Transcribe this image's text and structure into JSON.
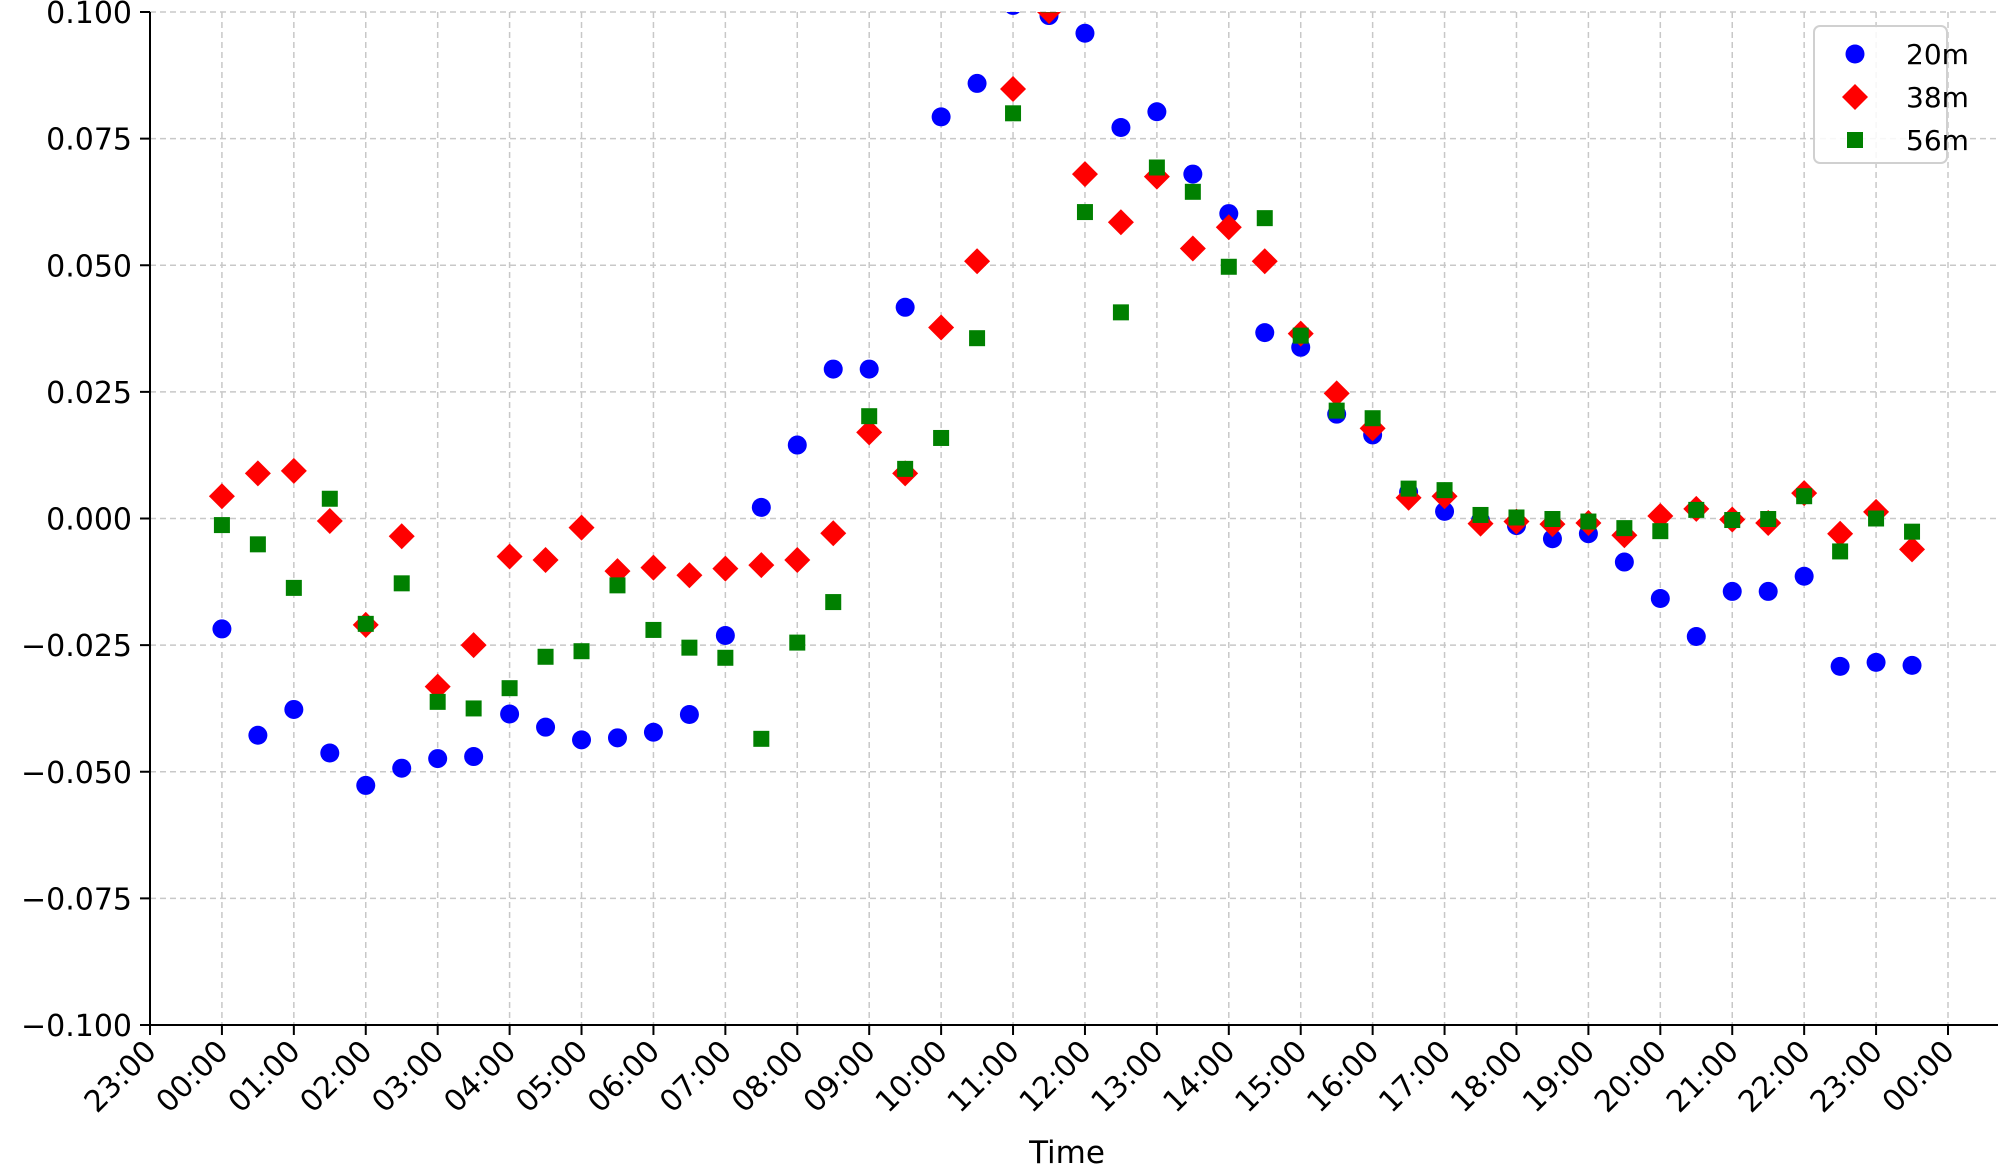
{
  "chart_data": {
    "type": "scatter",
    "title": "",
    "xlabel": "Time",
    "ylabel": "",
    "x_tick_labels": [
      "23:00",
      "00:00",
      "01:00",
      "02:00",
      "03:00",
      "04:00",
      "05:00",
      "06:00",
      "07:00",
      "08:00",
      "09:00",
      "10:00",
      "11:00",
      "12:00",
      "13:00",
      "14:00",
      "15:00",
      "16:00",
      "17:00",
      "18:00",
      "19:00",
      "20:00",
      "21:00",
      "22:00",
      "23:00",
      "00:00"
    ],
    "y_tick_labels": [
      "0.100",
      "0.075",
      "0.050",
      "0.025",
      "0.000",
      "−0.025",
      "−0.050",
      "−0.075",
      "−0.100"
    ],
    "xlim": [
      "23:00",
      "00:00 (+1 day)"
    ],
    "ylim": [
      -0.1,
      0.1
    ],
    "grid": true,
    "legend_position": "top-right",
    "x": [
      "00:00",
      "00:30",
      "01:00",
      "01:30",
      "02:00",
      "02:30",
      "03:00",
      "03:30",
      "04:00",
      "04:30",
      "05:00",
      "05:30",
      "06:00",
      "06:30",
      "07:00",
      "07:30",
      "08:00",
      "08:30",
      "09:00",
      "09:30",
      "10:00",
      "10:30",
      "11:00",
      "11:30",
      "12:00",
      "12:30",
      "13:00",
      "13:30",
      "14:00",
      "14:30",
      "15:00",
      "15:30",
      "16:00",
      "16:30",
      "17:00",
      "17:30",
      "18:00",
      "18:30",
      "19:00",
      "19:30",
      "20:00",
      "20:30",
      "21:00",
      "21:30",
      "22:00",
      "22:30",
      "23:00",
      "23:30"
    ],
    "series": [
      {
        "name": "20m",
        "marker": "circle",
        "color": "#0000ff",
        "values": [
          -0.0218,
          -0.0428,
          -0.0377,
          -0.0463,
          -0.0527,
          -0.0493,
          -0.0474,
          -0.047,
          -0.0386,
          -0.0412,
          -0.0437,
          -0.0433,
          -0.0422,
          -0.0387,
          -0.0231,
          0.0022,
          0.0145,
          0.0295,
          0.0295,
          0.0417,
          0.0793,
          0.0859,
          0.1013,
          0.0993,
          0.0958,
          0.0772,
          0.0803,
          0.068,
          0.0602,
          0.0367,
          0.0338,
          0.0206,
          0.0165,
          0.0052,
          0.0014,
          -0.0004,
          -0.0014,
          -0.004,
          -0.003,
          -0.0086,
          -0.0158,
          -0.0233,
          -0.0144,
          -0.0144,
          -0.0114,
          -0.0292,
          -0.0284,
          -0.029
        ]
      },
      {
        "name": "38m",
        "marker": "diamond",
        "color": "#ff0000",
        "values": [
          0.0044,
          0.0089,
          0.0094,
          -0.0005,
          -0.021,
          -0.0035,
          -0.0332,
          -0.025,
          -0.0075,
          -0.0082,
          -0.0018,
          -0.0104,
          -0.0097,
          -0.0112,
          -0.0099,
          -0.0092,
          -0.0082,
          -0.0029,
          0.017,
          0.0089,
          0.0377,
          0.0508,
          0.0848,
          0.1002,
          0.068,
          0.0585,
          0.0675,
          0.0533,
          0.0575,
          0.0508,
          0.0365,
          0.0247,
          0.0178,
          0.0041,
          0.0044,
          -0.001,
          -0.0006,
          -0.0011,
          -0.0009,
          -0.0033,
          0.0005,
          0.0019,
          -0.0002,
          -0.0009,
          0.005,
          -0.003,
          0.0013,
          -0.0061
        ]
      },
      {
        "name": "56m",
        "marker": "square",
        "color": "#008000",
        "values": [
          -0.0013,
          -0.0051,
          -0.0137,
          0.0039,
          -0.0208,
          -0.0128,
          -0.0362,
          -0.0375,
          -0.0335,
          -0.0273,
          -0.0262,
          -0.0132,
          -0.022,
          -0.0255,
          -0.0275,
          -0.0435,
          -0.0245,
          -0.0165,
          0.0202,
          0.0098,
          0.0159,
          0.0356,
          0.08,
          0.1015,
          0.0605,
          0.0407,
          0.0693,
          0.0645,
          0.0497,
          0.0593,
          0.0361,
          0.0213,
          0.0198,
          0.0059,
          0.0056,
          0.0007,
          0.0002,
          -0.0001,
          -0.0006,
          -0.0019,
          -0.0025,
          0.0017,
          -0.0003,
          -0.0001,
          0.0044,
          -0.0065,
          0.0,
          -0.0026
        ]
      }
    ]
  }
}
